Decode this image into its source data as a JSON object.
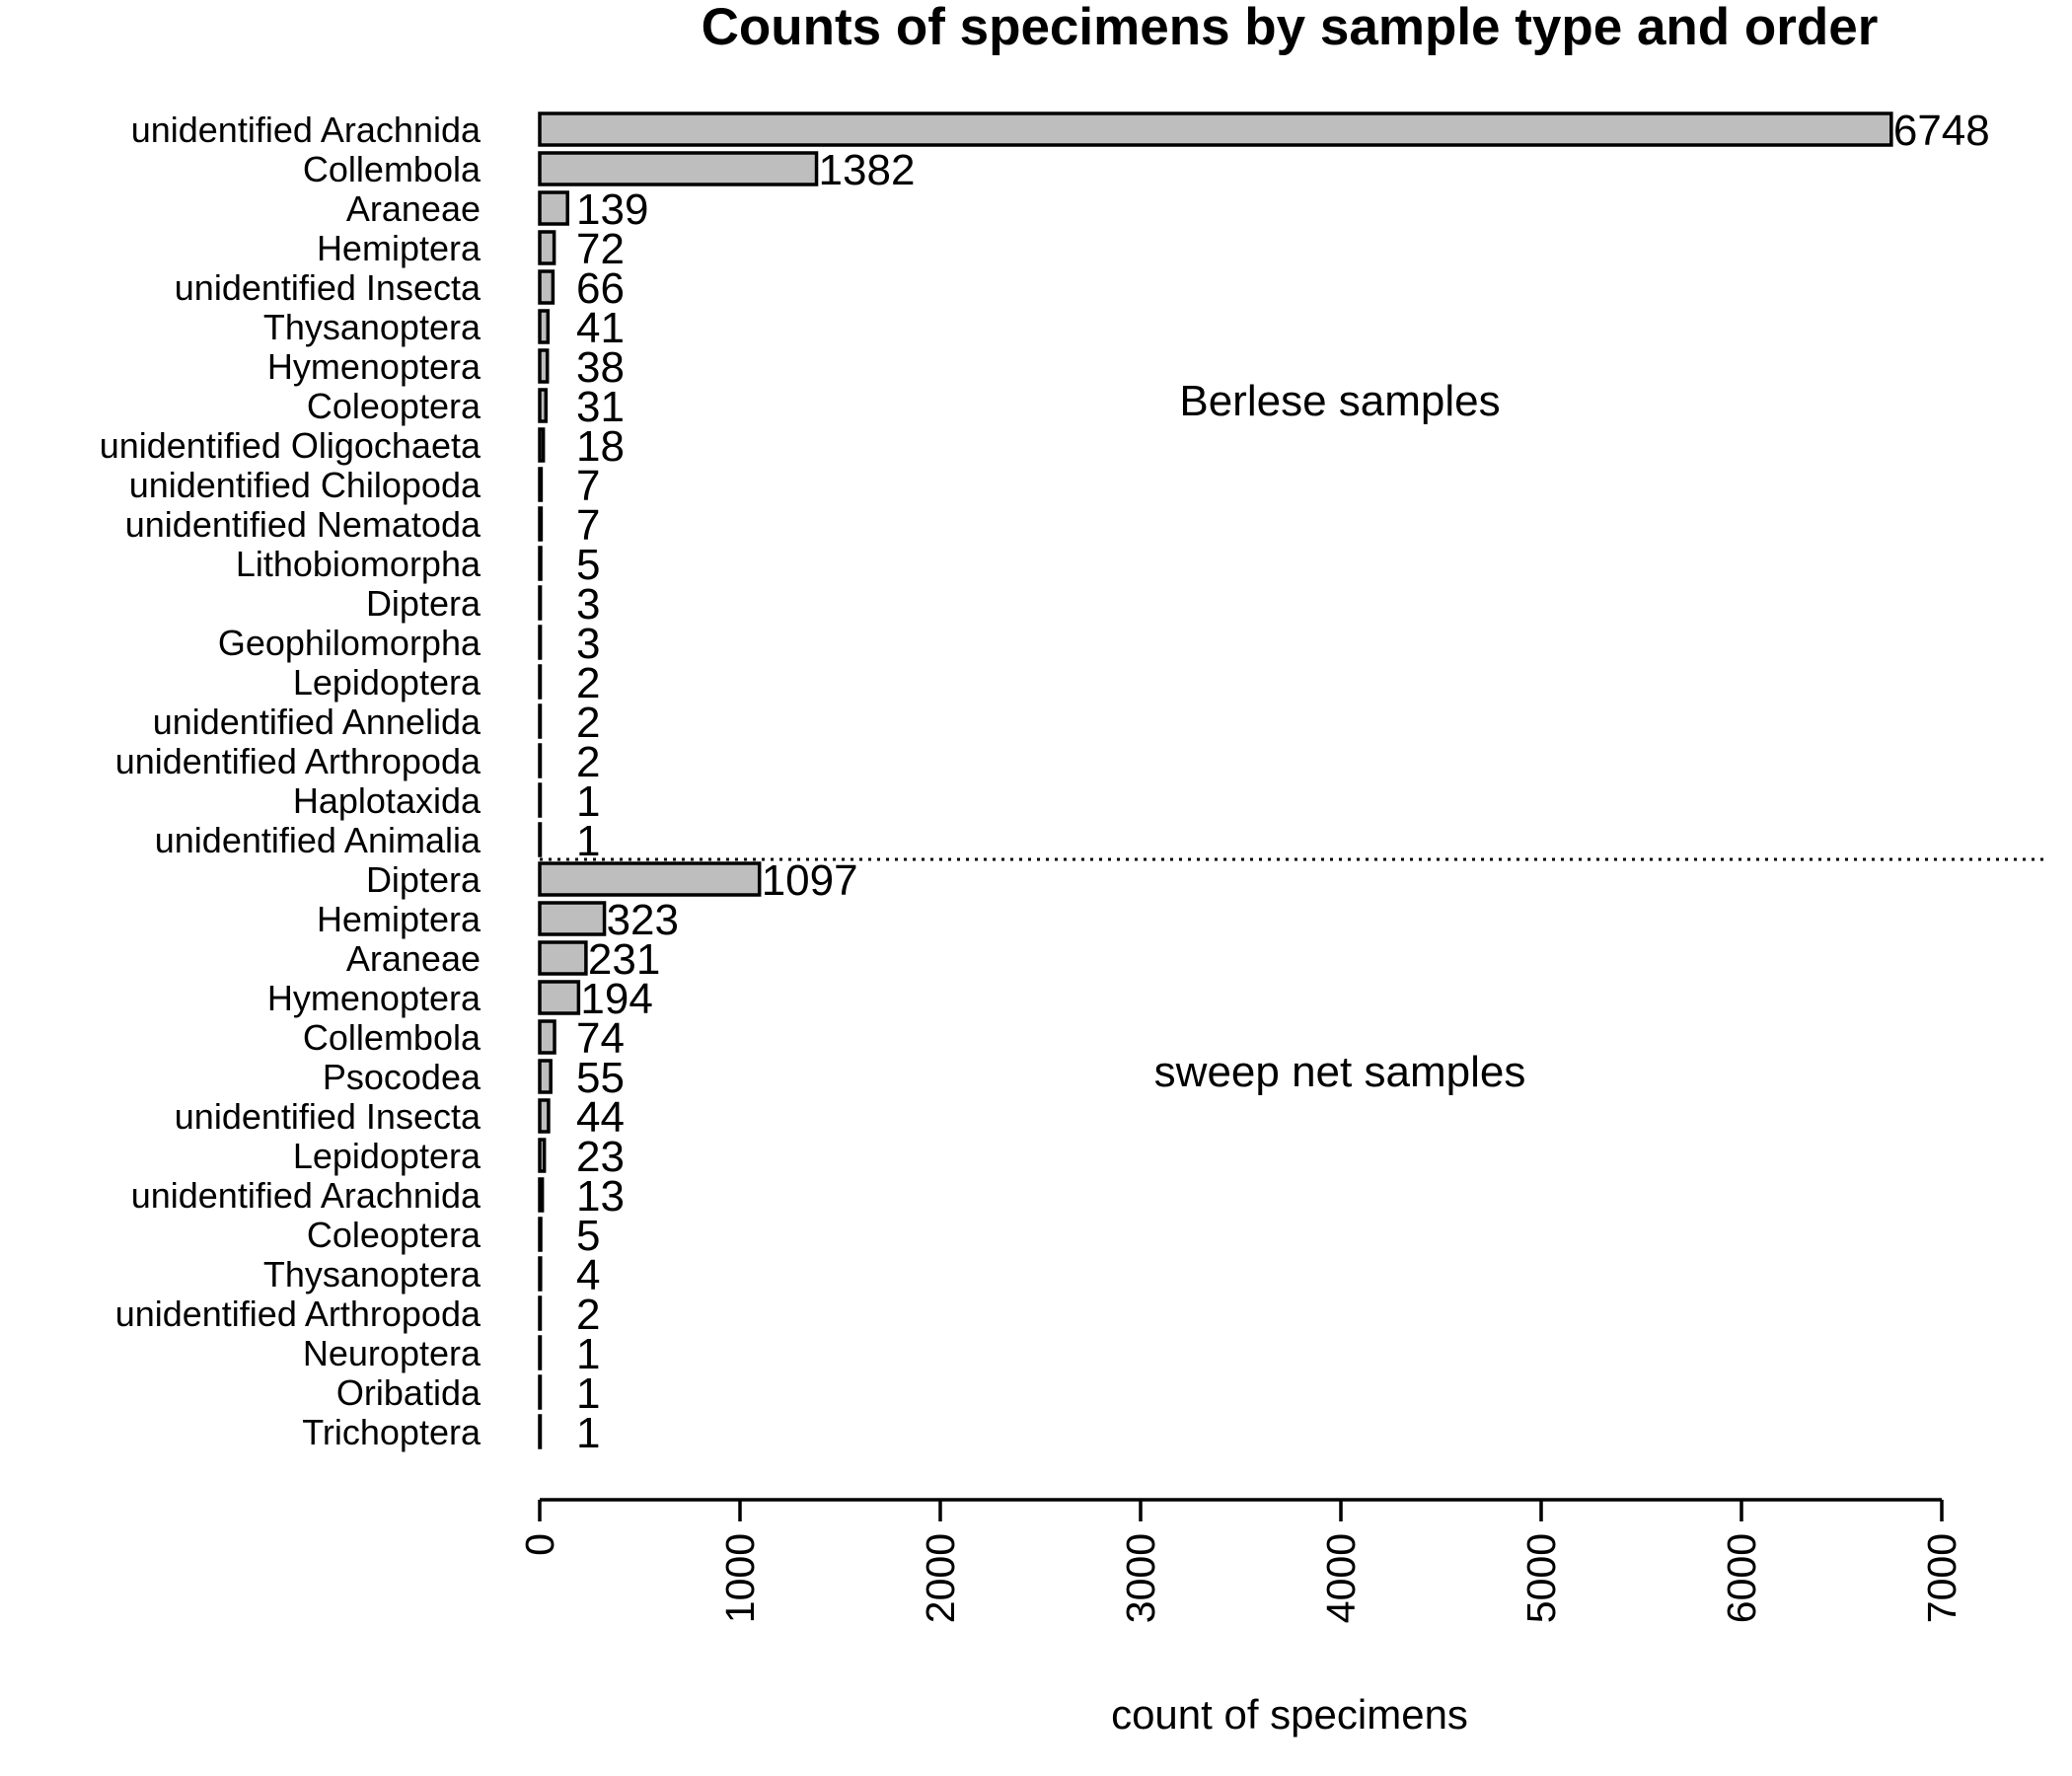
{
  "chart_data": {
    "type": "bar",
    "orientation": "horizontal",
    "title": "Counts of specimens by sample type and order",
    "xlabel": "count of specimens",
    "xlim": [
      0,
      7000
    ],
    "xticks": [
      0,
      1000,
      2000,
      3000,
      4000,
      5000,
      6000,
      7000
    ],
    "grid": false,
    "bar_color": "#bebebe",
    "groups": [
      {
        "label": "Berlese samples",
        "categories": [
          "unidentified Arachnida",
          "Collembola",
          "Araneae",
          "Hemiptera",
          "unidentified Insecta",
          "Thysanoptera",
          "Hymenoptera",
          "Coleoptera",
          "unidentified Oligochaeta",
          "unidentified Chilopoda",
          "unidentified Nematoda",
          "Lithobiomorpha",
          "Diptera",
          "Geophilomorpha",
          "Lepidoptera",
          "unidentified Annelida",
          "unidentified Arthropoda",
          "Haplotaxida",
          "unidentified Animalia"
        ],
        "values": [
          6748,
          1382,
          139,
          72,
          66,
          41,
          38,
          31,
          18,
          7,
          7,
          5,
          3,
          3,
          2,
          2,
          2,
          1,
          1
        ]
      },
      {
        "label": "sweep net samples",
        "categories": [
          "Diptera",
          "Hemiptera",
          "Araneae",
          "Hymenoptera",
          "Collembola",
          "Psocodea",
          "unidentified Insecta",
          "Lepidoptera",
          "unidentified Arachnida",
          "Coleoptera",
          "Thysanoptera",
          "unidentified Arthropoda",
          "Neuroptera",
          "Oribatida",
          "Trichoptera"
        ],
        "values": [
          1097,
          323,
          231,
          194,
          74,
          55,
          44,
          23,
          13,
          5,
          4,
          2,
          1,
          1,
          1
        ]
      }
    ]
  }
}
